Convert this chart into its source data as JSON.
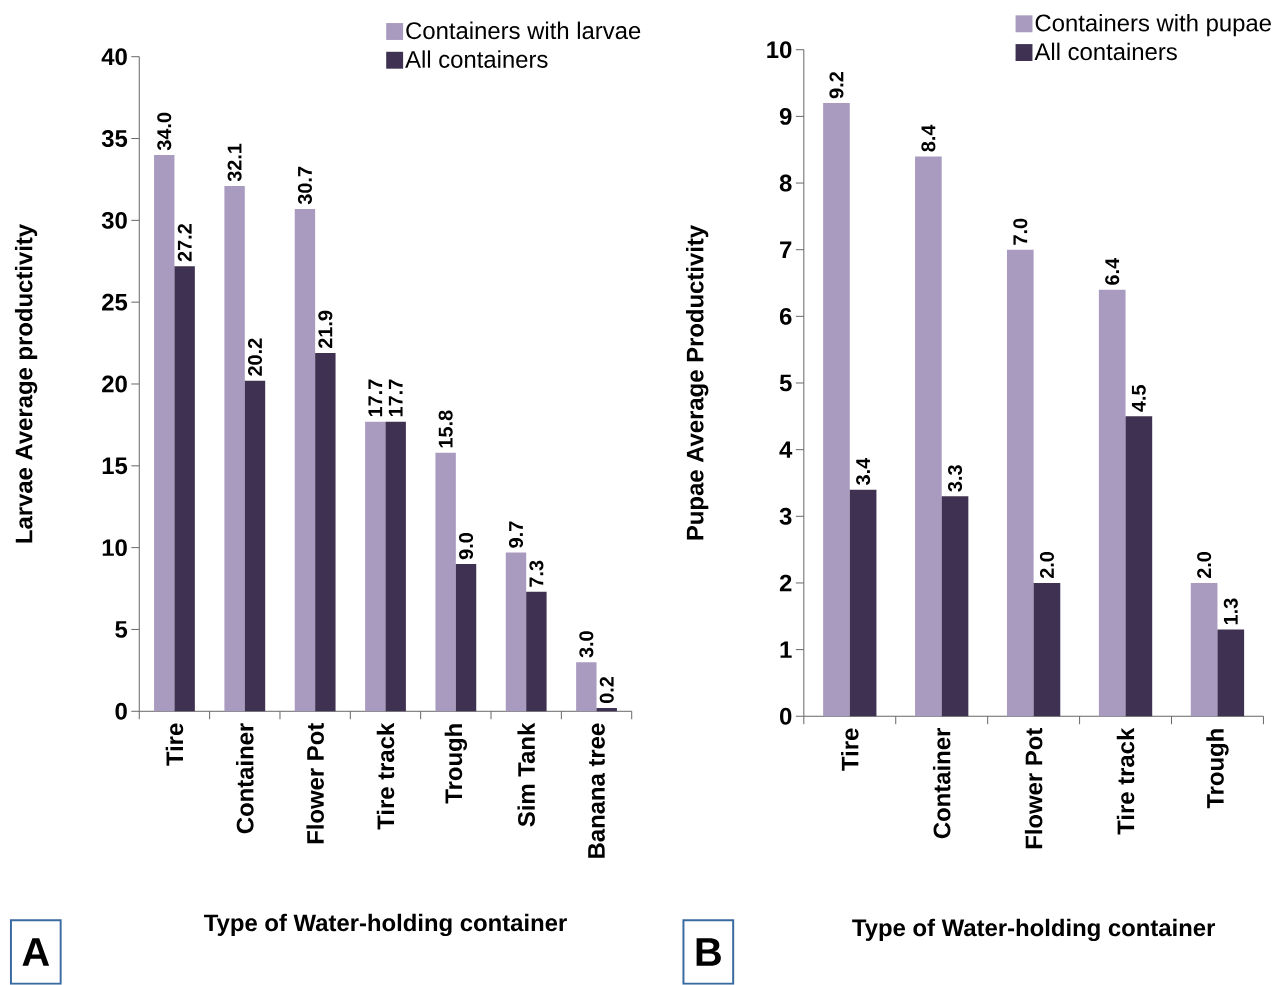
{
  "chart_data": [
    {
      "type": "bar",
      "xlabel": "Type of Water-holding container",
      "ylabel": "Larvae Average productivity",
      "categories": [
        "Tire",
        "Container",
        "Flower Pot",
        "Tire track",
        "Trough",
        "Sim Tank",
        "Banana tree"
      ],
      "series": [
        {
          "name": "Containers with larvae",
          "color": "#a99bbf",
          "values": [
            34.0,
            32.1,
            30.7,
            17.7,
            15.8,
            9.7,
            3.0
          ],
          "value_labels": [
            "34.0",
            "32.1",
            "30.7",
            "17.7",
            "15.8",
            "9.7",
            "3.0"
          ]
        },
        {
          "name": "All containers",
          "color": "#3f3151",
          "values": [
            27.2,
            20.2,
            21.9,
            17.7,
            9.0,
            7.3,
            0.2
          ],
          "value_labels": [
            "27.2",
            "20.2",
            "21.9",
            "17.7",
            "9.0",
            "7.3",
            "0.2"
          ]
        }
      ],
      "ylim": [
        0,
        40
      ],
      "yticks": [
        0,
        5,
        10,
        15,
        20,
        25,
        30,
        35,
        40
      ],
      "legend": "top right",
      "annotations": [
        "A"
      ]
    },
    {
      "type": "bar",
      "xlabel": "Type of Water-holding container",
      "ylabel": "Pupae Average Productivity",
      "categories": [
        "Tire",
        "Container",
        "Flower Pot",
        "Tire track",
        "Trough"
      ],
      "series": [
        {
          "name": "Containers with pupae",
          "color": "#a99bbf",
          "values": [
            9.2,
            8.4,
            7.0,
            6.4,
            2.0
          ],
          "value_labels": [
            "9.2",
            "8.4",
            "7.0",
            "6.4",
            "2.0"
          ]
        },
        {
          "name": "All containers",
          "color": "#3f3151",
          "values": [
            3.4,
            3.3,
            2.0,
            4.5,
            1.3
          ],
          "value_labels": [
            "3.4",
            "3.3",
            "2.0",
            "4.5",
            "1.3"
          ]
        }
      ],
      "ylim": [
        0,
        10
      ],
      "yticks": [
        0,
        1,
        2,
        3,
        4,
        5,
        6,
        7,
        8,
        9,
        10
      ],
      "legend": "top right",
      "annotations": [
        "B"
      ]
    }
  ]
}
